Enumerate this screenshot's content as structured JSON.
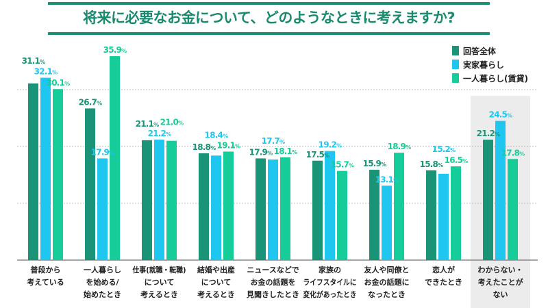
{
  "title": "将来に必要なお金について、どのようなときに考えますか?",
  "chart_data": {
    "type": "bar",
    "title": "将来に必要なお金について、どのようなときに考えますか?",
    "categories": [
      [
        "普段から",
        "考えている"
      ],
      [
        "一人暮らし",
        "を始める/",
        "始めたとき"
      ],
      [
        "仕事(就職・転職)",
        "について",
        "考えるとき"
      ],
      [
        "結婚や出産",
        "について",
        "考えるとき"
      ],
      [
        "ニュースなどで",
        "お金の話題を",
        "見聞きしたとき"
      ],
      [
        "家族の",
        "ライフスタイルに",
        "変化があったとき"
      ],
      [
        "友人や同僚と",
        "お金の話題に",
        "なったとき"
      ],
      [
        "恋人が",
        "できたとき"
      ],
      [
        "わからない・",
        "考えたことが",
        "ない"
      ]
    ],
    "series": [
      {
        "name": "回答全体",
        "values": [
          31.1,
          26.7,
          21.1,
          18.8,
          17.9,
          17.5,
          15.9,
          15.8,
          21.2
        ]
      },
      {
        "name": "実家暮らし",
        "values": [
          32.1,
          17.9,
          21.2,
          18.4,
          17.7,
          19.2,
          13.1,
          15.2,
          24.5
        ]
      },
      {
        "name": "一人暮らし(賃貸)",
        "values": [
          30.1,
          35.9,
          21.0,
          19.1,
          18.1,
          15.7,
          18.9,
          16.5,
          17.8
        ]
      }
    ],
    "colors": [
      "#1a9477",
      "#1ec6f0",
      "#16cc98"
    ],
    "unit": "%",
    "ylim": [
      0,
      40
    ],
    "grid": true,
    "legend": "top-right",
    "highlighted_category": 8
  }
}
